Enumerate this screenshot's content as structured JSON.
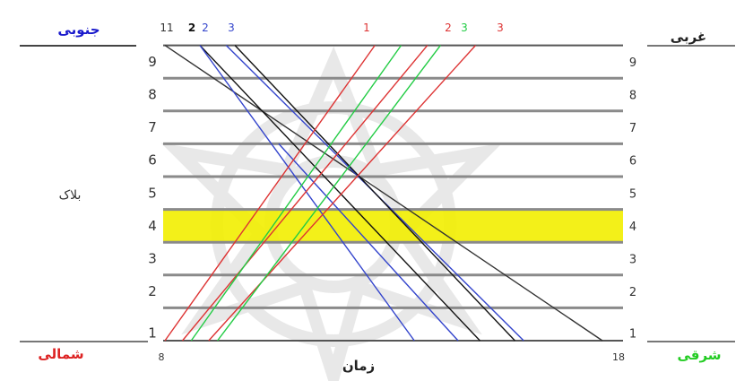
{
  "labels": {
    "top_left": "جنوبی",
    "top_right": "غربی",
    "bottom_left": "شمالی",
    "bottom_right": "شرقی",
    "vertical_axis": "بلاک",
    "horizontal_axis": "زمان",
    "x_start": "8",
    "x_end": "18"
  },
  "label_colors": {
    "top_left": "#1a1acc",
    "top_right": "#222222",
    "bottom_left": "#dd2222",
    "bottom_right": "#22cc22"
  },
  "blocks": [
    "1",
    "2",
    "3",
    "4",
    "5",
    "6",
    "7",
    "8",
    "9"
  ],
  "highlighted_block": "4",
  "highlight_color": "#f2ee00",
  "trains_from_top": [
    {
      "label": "11",
      "color": "#333333"
    },
    {
      "label": "2",
      "color": "#111111"
    },
    {
      "label": "2",
      "color": "#3344cc"
    },
    {
      "label": "3",
      "color": "#3344cc"
    }
  ],
  "trains_from_bottom": [
    {
      "label": "1",
      "color": "#dd3333"
    },
    {
      "label": "2",
      "color": "#dd3333"
    },
    {
      "label": "3",
      "color": "#22cc44"
    },
    {
      "label": "3",
      "color": "#dd3333"
    }
  ],
  "chart_data": {
    "type": "line",
    "xlabel": "زمان",
    "ylabel": "بلاک",
    "xlim": [
      8,
      18
    ],
    "ylim": [
      1,
      10
    ],
    "series": [
      {
        "name": "11",
        "color": "#333333",
        "points": [
          [
            8.0,
            10
          ],
          [
            18.0,
            1
          ]
        ]
      },
      {
        "name": "2",
        "color": "#111111",
        "points": [
          [
            8.8,
            10
          ],
          [
            15.2,
            1
          ]
        ]
      },
      {
        "name": "2",
        "color": "#3344cc",
        "points": [
          [
            8.8,
            10
          ],
          [
            13.7,
            1
          ]
        ]
      },
      {
        "name": "3",
        "color": "#3344cc",
        "points": [
          [
            9.4,
            10
          ],
          [
            16.2,
            1
          ]
        ]
      },
      {
        "name": "",
        "color": "#111111",
        "points": [
          [
            9.6,
            10
          ],
          [
            16.0,
            1
          ]
        ]
      },
      {
        "name": "",
        "color": "#3344cc",
        "points": [
          [
            10.6,
            7
          ],
          [
            14.7,
            1
          ]
        ]
      },
      {
        "name": "1",
        "color": "#dd3333",
        "points": [
          [
            8.0,
            1
          ],
          [
            12.8,
            10
          ]
        ]
      },
      {
        "name": "2",
        "color": "#dd3333",
        "points": [
          [
            8.4,
            1
          ],
          [
            14.0,
            10
          ]
        ]
      },
      {
        "name": "",
        "color": "#22cc44",
        "points": [
          [
            8.6,
            1
          ],
          [
            13.4,
            10
          ]
        ]
      },
      {
        "name": "3",
        "color": "#dd3333",
        "points": [
          [
            9.0,
            1
          ],
          [
            15.1,
            10
          ]
        ]
      },
      {
        "name": "",
        "color": "#22cc44",
        "points": [
          [
            9.2,
            1
          ],
          [
            14.3,
            10
          ]
        ]
      }
    ]
  }
}
